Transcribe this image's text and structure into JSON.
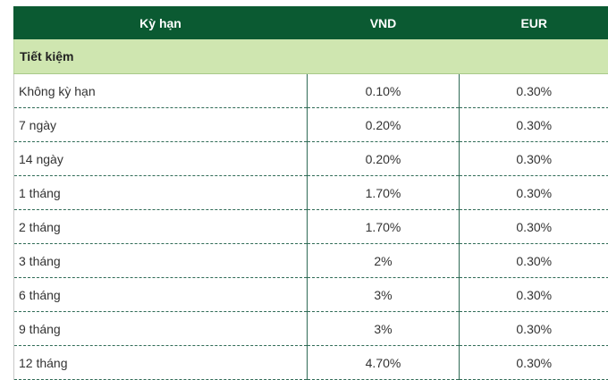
{
  "table": {
    "headers": [
      "Kỳ hạn",
      "VND",
      "EUR"
    ],
    "section_label": "Tiết kiệm",
    "rows": [
      {
        "term": "Không kỳ hạn",
        "vnd": "0.10%",
        "eur": "0.30%"
      },
      {
        "term": "7 ngày",
        "vnd": "0.20%",
        "eur": "0.30%"
      },
      {
        "term": "14 ngày",
        "vnd": "0.20%",
        "eur": "0.30%"
      },
      {
        "term": "1 tháng",
        "vnd": "1.70%",
        "eur": "0.30%"
      },
      {
        "term": "2 tháng",
        "vnd": "1.70%",
        "eur": "0.30%"
      },
      {
        "term": "3 tháng",
        "vnd": "2%",
        "eur": "0.30%"
      },
      {
        "term": "6 tháng",
        "vnd": "3%",
        "eur": "0.30%"
      },
      {
        "term": "9 tháng",
        "vnd": "3%",
        "eur": "0.30%"
      },
      {
        "term": "12 tháng",
        "vnd": "4.70%",
        "eur": "0.30%"
      }
    ]
  },
  "colors": {
    "header_bg": "#0b5a32",
    "section_bg": "#cfe6b0",
    "border": "#2f6b56"
  }
}
